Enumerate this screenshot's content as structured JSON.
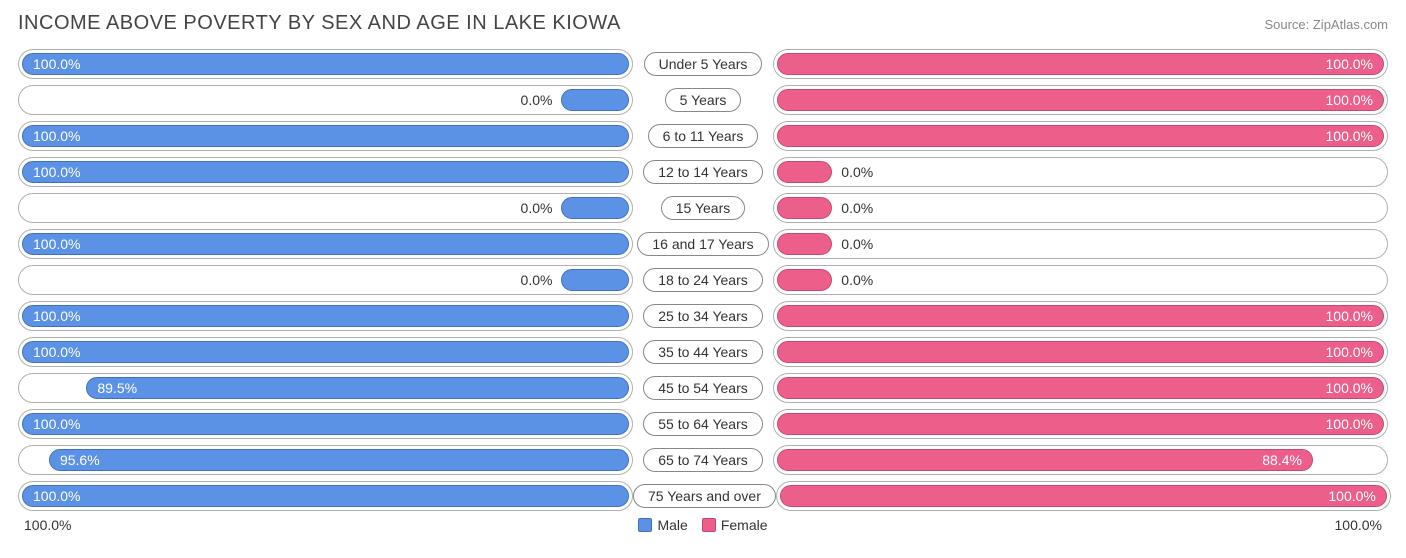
{
  "title": "INCOME ABOVE POVERTY BY SEX AND AGE IN LAKE KIOWA",
  "source": "Source: ZipAtlas.com",
  "colors": {
    "male_fill": "#5b92e5",
    "male_border": "#3f72b8",
    "female_fill": "#ec5f8a",
    "female_border": "#c94872",
    "track_border": "#b0b0b0",
    "text_dark": "#333333"
  },
  "axis": {
    "left": "100.0%",
    "right": "100.0%"
  },
  "legend": {
    "male": "Male",
    "female": "Female"
  },
  "male_short_bar_pct": 12,
  "female_short_bar_pct": 10,
  "rows": [
    {
      "label": "Under 5 Years",
      "male": 100.0,
      "male_txt": "100.0%",
      "female": 100.0,
      "female_txt": "100.0%"
    },
    {
      "label": "5 Years",
      "male": 0.0,
      "male_txt": "0.0%",
      "female": 100.0,
      "female_txt": "100.0%"
    },
    {
      "label": "6 to 11 Years",
      "male": 100.0,
      "male_txt": "100.0%",
      "female": 100.0,
      "female_txt": "100.0%"
    },
    {
      "label": "12 to 14 Years",
      "male": 100.0,
      "male_txt": "100.0%",
      "female": 0.0,
      "female_txt": "0.0%"
    },
    {
      "label": "15 Years",
      "male": 0.0,
      "male_txt": "0.0%",
      "female": 0.0,
      "female_txt": "0.0%"
    },
    {
      "label": "16 and 17 Years",
      "male": 100.0,
      "male_txt": "100.0%",
      "female": 0.0,
      "female_txt": "0.0%"
    },
    {
      "label": "18 to 24 Years",
      "male": 0.0,
      "male_txt": "0.0%",
      "female": 0.0,
      "female_txt": "0.0%"
    },
    {
      "label": "25 to 34 Years",
      "male": 100.0,
      "male_txt": "100.0%",
      "female": 100.0,
      "female_txt": "100.0%"
    },
    {
      "label": "35 to 44 Years",
      "male": 100.0,
      "male_txt": "100.0%",
      "female": 100.0,
      "female_txt": "100.0%"
    },
    {
      "label": "45 to 54 Years",
      "male": 89.5,
      "male_txt": "89.5%",
      "female": 100.0,
      "female_txt": "100.0%"
    },
    {
      "label": "55 to 64 Years",
      "male": 100.0,
      "male_txt": "100.0%",
      "female": 100.0,
      "female_txt": "100.0%"
    },
    {
      "label": "65 to 74 Years",
      "male": 95.6,
      "male_txt": "95.6%",
      "female": 88.4,
      "female_txt": "88.4%"
    },
    {
      "label": "75 Years and over",
      "male": 100.0,
      "male_txt": "100.0%",
      "female": 100.0,
      "female_txt": "100.0%"
    }
  ]
}
